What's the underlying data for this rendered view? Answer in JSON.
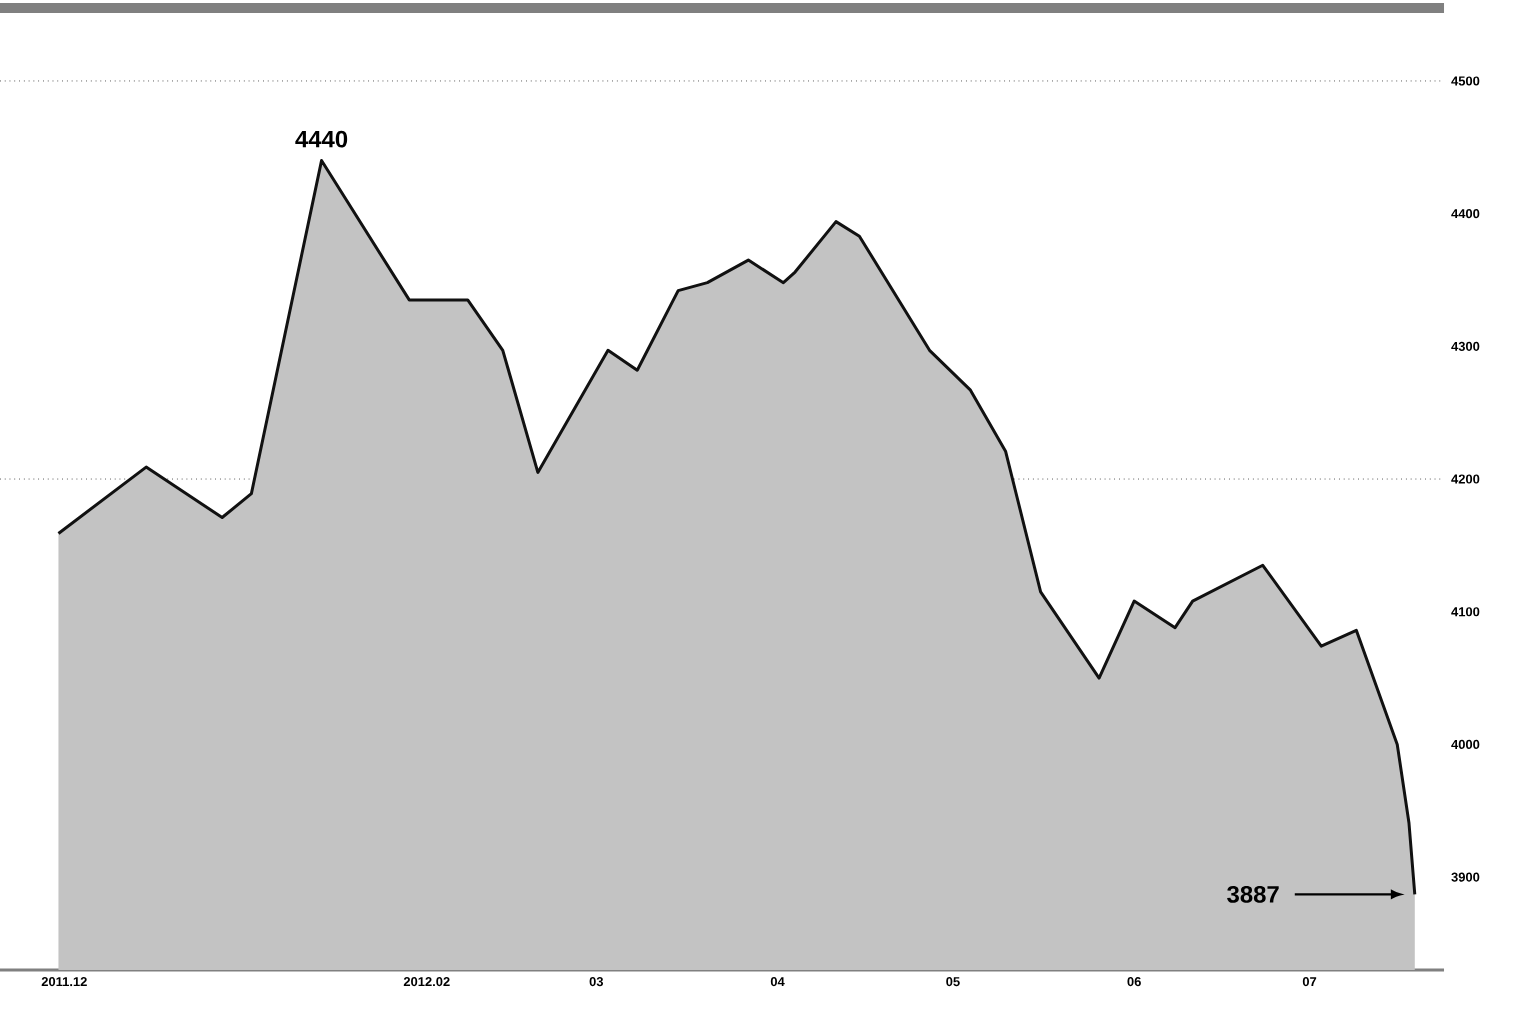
{
  "chart_data": {
    "type": "area",
    "x": [
      "2011-11-30",
      "2011-12-15",
      "2011-12-28",
      "2012-01-02",
      "2012-01-14",
      "2012-01-29",
      "2012-02-08",
      "2012-02-14",
      "2012-02-20",
      "2012-03-03",
      "2012-03-08",
      "2012-03-15",
      "2012-03-20",
      "2012-03-27",
      "2012-04-02",
      "2012-04-04",
      "2012-04-11",
      "2012-04-15",
      "2012-04-27",
      "2012-05-04",
      "2012-05-10",
      "2012-05-16",
      "2012-05-26",
      "2012-06-01",
      "2012-06-08",
      "2012-06-11",
      "2012-06-23",
      "2012-07-03",
      "2012-07-09",
      "2012-07-16",
      "2012-07-18",
      "2012-07-19"
    ],
    "series": [
      {
        "color": "#111111",
        "values": [
          4159,
          4209,
          4171,
          4189,
          4440,
          4335,
          4335,
          4297,
          4205,
          4297,
          4282,
          4342,
          4348,
          4365,
          4348,
          4356,
          4394,
          4383,
          4297,
          4267,
          4221,
          4115,
          4050,
          4108,
          4088,
          4108,
          4135,
          4074,
          4086,
          4000,
          3941,
          3887
        ]
      }
    ],
    "xlim": [
      "2011-11-20",
      "2012-07-24"
    ],
    "xticks": [
      {
        "value": "2011-12-01",
        "label": "2011.12"
      },
      {
        "value": "2012-02-01",
        "label": "2012.02"
      },
      {
        "value": "2012-03-01",
        "label": "03"
      },
      {
        "value": "2012-04-01",
        "label": "04"
      },
      {
        "value": "2012-05-01",
        "label": "05"
      },
      {
        "value": "2012-06-01",
        "label": "06"
      },
      {
        "value": "2012-07-01",
        "label": "07"
      }
    ],
    "ylim": [
      3830,
      4555
    ],
    "yticks": [
      3900,
      4000,
      4100,
      4200,
      4300,
      4400,
      4500
    ],
    "ref_lines": [
      {
        "axis": "y",
        "value": 4200,
        "line_style": "dotted"
      },
      {
        "axis": "y",
        "value": 4500,
        "line_style": "dotted"
      }
    ],
    "annotations": [
      {
        "text": "4440",
        "x": "2012-01-14",
        "y": 4440
      },
      "3887"
    ]
  }
}
